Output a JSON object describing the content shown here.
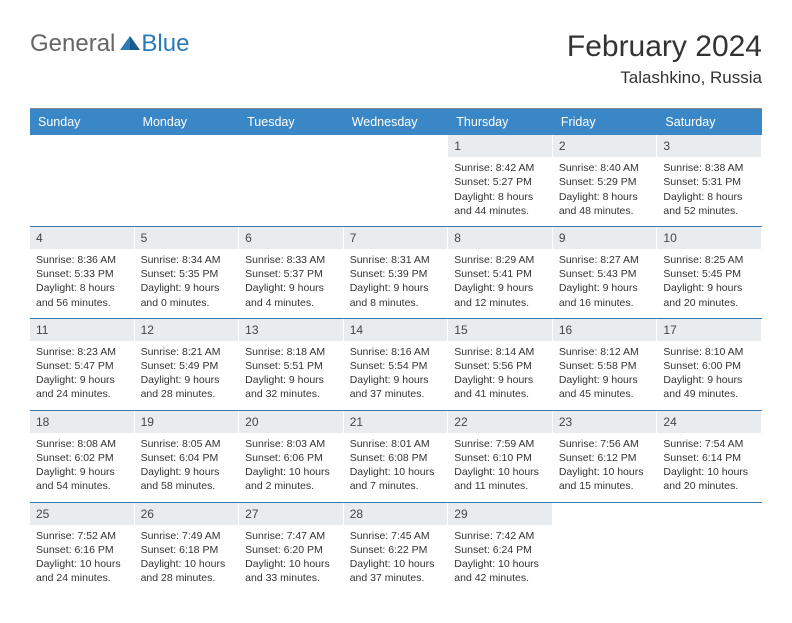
{
  "logo": {
    "general": "General",
    "blue": "Blue"
  },
  "title": "February 2024",
  "location": "Talashkino, Russia",
  "colors": {
    "header_bg": "#3a87c8",
    "header_text": "#ffffff",
    "daynum_bg": "#e9ecef",
    "daynum_text": "#444444",
    "cell_text": "#333333",
    "divider": "#3a78a8",
    "logo_accent": "#2a7ab8"
  },
  "day_headers": [
    "Sunday",
    "Monday",
    "Tuesday",
    "Wednesday",
    "Thursday",
    "Friday",
    "Saturday"
  ],
  "weeks": [
    [
      {
        "blank": true
      },
      {
        "blank": true
      },
      {
        "blank": true
      },
      {
        "blank": true
      },
      {
        "day": "1",
        "sunrise": "Sunrise: 8:42 AM",
        "sunset": "Sunset: 5:27 PM",
        "daylight": "Daylight: 8 hours and 44 minutes."
      },
      {
        "day": "2",
        "sunrise": "Sunrise: 8:40 AM",
        "sunset": "Sunset: 5:29 PM",
        "daylight": "Daylight: 8 hours and 48 minutes."
      },
      {
        "day": "3",
        "sunrise": "Sunrise: 8:38 AM",
        "sunset": "Sunset: 5:31 PM",
        "daylight": "Daylight: 8 hours and 52 minutes."
      }
    ],
    [
      {
        "day": "4",
        "sunrise": "Sunrise: 8:36 AM",
        "sunset": "Sunset: 5:33 PM",
        "daylight": "Daylight: 8 hours and 56 minutes."
      },
      {
        "day": "5",
        "sunrise": "Sunrise: 8:34 AM",
        "sunset": "Sunset: 5:35 PM",
        "daylight": "Daylight: 9 hours and 0 minutes."
      },
      {
        "day": "6",
        "sunrise": "Sunrise: 8:33 AM",
        "sunset": "Sunset: 5:37 PM",
        "daylight": "Daylight: 9 hours and 4 minutes."
      },
      {
        "day": "7",
        "sunrise": "Sunrise: 8:31 AM",
        "sunset": "Sunset: 5:39 PM",
        "daylight": "Daylight: 9 hours and 8 minutes."
      },
      {
        "day": "8",
        "sunrise": "Sunrise: 8:29 AM",
        "sunset": "Sunset: 5:41 PM",
        "daylight": "Daylight: 9 hours and 12 minutes."
      },
      {
        "day": "9",
        "sunrise": "Sunrise: 8:27 AM",
        "sunset": "Sunset: 5:43 PM",
        "daylight": "Daylight: 9 hours and 16 minutes."
      },
      {
        "day": "10",
        "sunrise": "Sunrise: 8:25 AM",
        "sunset": "Sunset: 5:45 PM",
        "daylight": "Daylight: 9 hours and 20 minutes."
      }
    ],
    [
      {
        "day": "11",
        "sunrise": "Sunrise: 8:23 AM",
        "sunset": "Sunset: 5:47 PM",
        "daylight": "Daylight: 9 hours and 24 minutes."
      },
      {
        "day": "12",
        "sunrise": "Sunrise: 8:21 AM",
        "sunset": "Sunset: 5:49 PM",
        "daylight": "Daylight: 9 hours and 28 minutes."
      },
      {
        "day": "13",
        "sunrise": "Sunrise: 8:18 AM",
        "sunset": "Sunset: 5:51 PM",
        "daylight": "Daylight: 9 hours and 32 minutes."
      },
      {
        "day": "14",
        "sunrise": "Sunrise: 8:16 AM",
        "sunset": "Sunset: 5:54 PM",
        "daylight": "Daylight: 9 hours and 37 minutes."
      },
      {
        "day": "15",
        "sunrise": "Sunrise: 8:14 AM",
        "sunset": "Sunset: 5:56 PM",
        "daylight": "Daylight: 9 hours and 41 minutes."
      },
      {
        "day": "16",
        "sunrise": "Sunrise: 8:12 AM",
        "sunset": "Sunset: 5:58 PM",
        "daylight": "Daylight: 9 hours and 45 minutes."
      },
      {
        "day": "17",
        "sunrise": "Sunrise: 8:10 AM",
        "sunset": "Sunset: 6:00 PM",
        "daylight": "Daylight: 9 hours and 49 minutes."
      }
    ],
    [
      {
        "day": "18",
        "sunrise": "Sunrise: 8:08 AM",
        "sunset": "Sunset: 6:02 PM",
        "daylight": "Daylight: 9 hours and 54 minutes."
      },
      {
        "day": "19",
        "sunrise": "Sunrise: 8:05 AM",
        "sunset": "Sunset: 6:04 PM",
        "daylight": "Daylight: 9 hours and 58 minutes."
      },
      {
        "day": "20",
        "sunrise": "Sunrise: 8:03 AM",
        "sunset": "Sunset: 6:06 PM",
        "daylight": "Daylight: 10 hours and 2 minutes."
      },
      {
        "day": "21",
        "sunrise": "Sunrise: 8:01 AM",
        "sunset": "Sunset: 6:08 PM",
        "daylight": "Daylight: 10 hours and 7 minutes."
      },
      {
        "day": "22",
        "sunrise": "Sunrise: 7:59 AM",
        "sunset": "Sunset: 6:10 PM",
        "daylight": "Daylight: 10 hours and 11 minutes."
      },
      {
        "day": "23",
        "sunrise": "Sunrise: 7:56 AM",
        "sunset": "Sunset: 6:12 PM",
        "daylight": "Daylight: 10 hours and 15 minutes."
      },
      {
        "day": "24",
        "sunrise": "Sunrise: 7:54 AM",
        "sunset": "Sunset: 6:14 PM",
        "daylight": "Daylight: 10 hours and 20 minutes."
      }
    ],
    [
      {
        "day": "25",
        "sunrise": "Sunrise: 7:52 AM",
        "sunset": "Sunset: 6:16 PM",
        "daylight": "Daylight: 10 hours and 24 minutes."
      },
      {
        "day": "26",
        "sunrise": "Sunrise: 7:49 AM",
        "sunset": "Sunset: 6:18 PM",
        "daylight": "Daylight: 10 hours and 28 minutes."
      },
      {
        "day": "27",
        "sunrise": "Sunrise: 7:47 AM",
        "sunset": "Sunset: 6:20 PM",
        "daylight": "Daylight: 10 hours and 33 minutes."
      },
      {
        "day": "28",
        "sunrise": "Sunrise: 7:45 AM",
        "sunset": "Sunset: 6:22 PM",
        "daylight": "Daylight: 10 hours and 37 minutes."
      },
      {
        "day": "29",
        "sunrise": "Sunrise: 7:42 AM",
        "sunset": "Sunset: 6:24 PM",
        "daylight": "Daylight: 10 hours and 42 minutes."
      },
      {
        "blank": true
      },
      {
        "blank": true
      }
    ]
  ]
}
